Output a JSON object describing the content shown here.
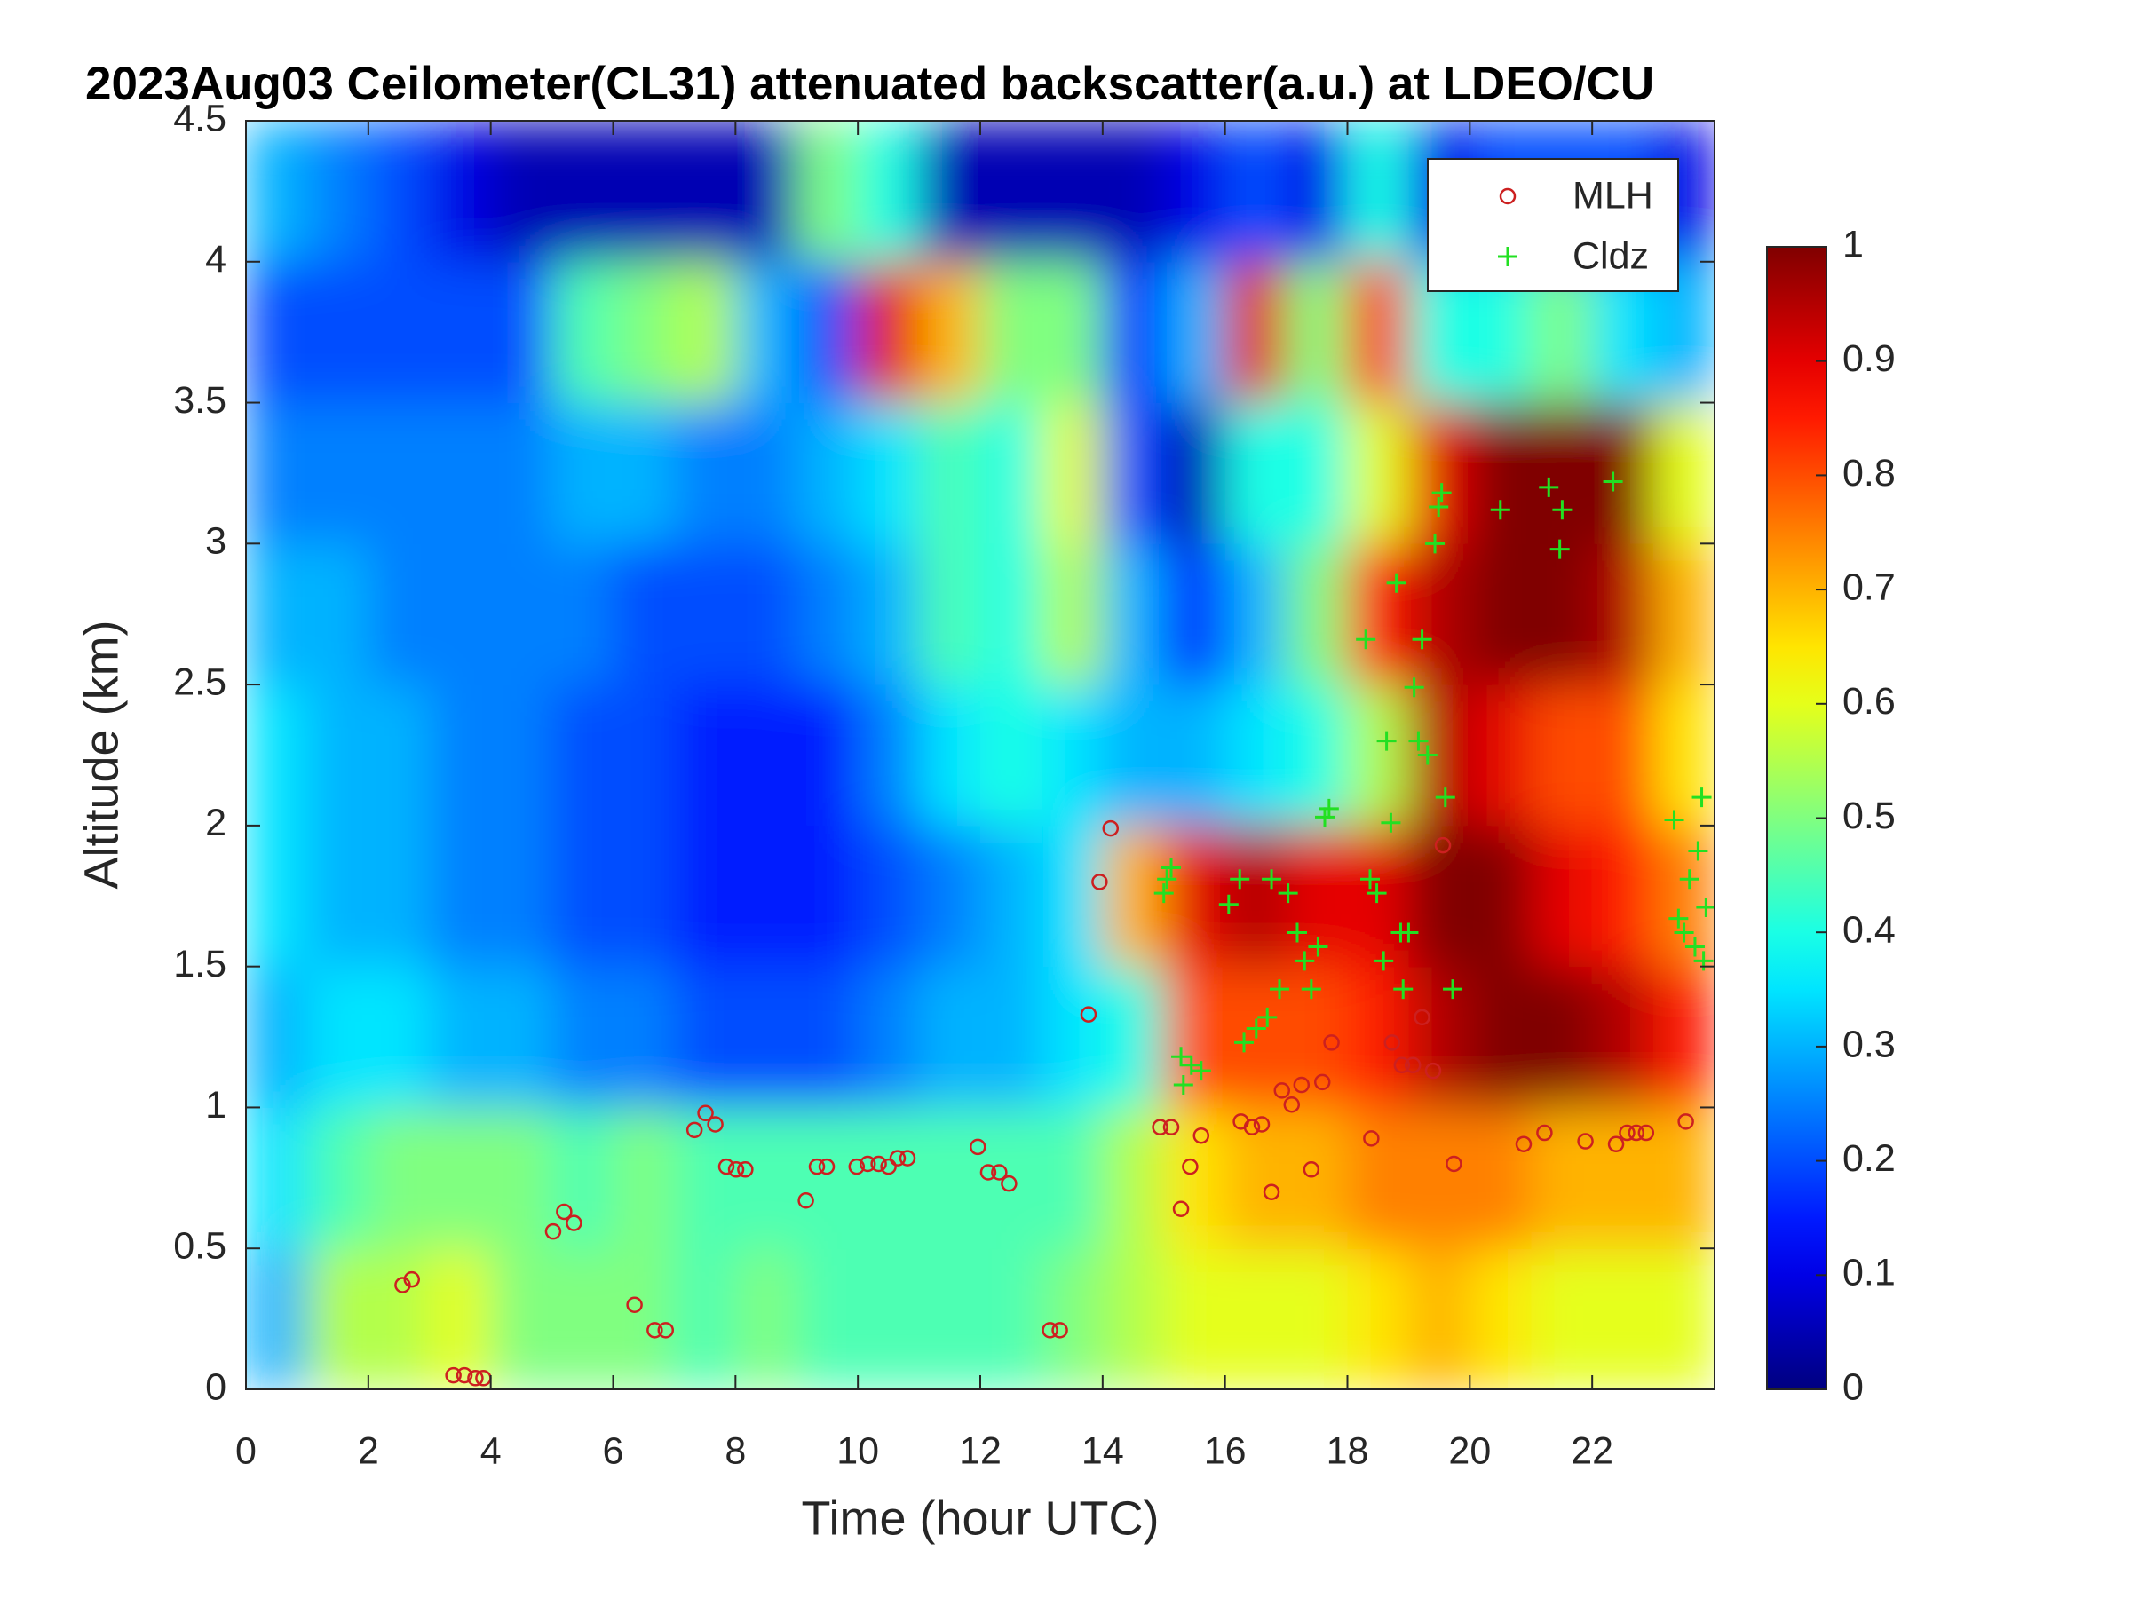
{
  "chart_data": {
    "type": "heatmap",
    "title": "2023Aug03 Ceilometer(CL31) attenuated backscatter(a.u.) at LDEO/CU",
    "x_label": "Time (hour UTC)",
    "y_label": "Altitude (km)",
    "xlim": [
      0,
      24
    ],
    "xticks": [
      0,
      2,
      4,
      6,
      8,
      10,
      12,
      14,
      16,
      18,
      20,
      22
    ],
    "ylim": [
      0,
      4.5
    ],
    "yticks": [
      0,
      0.5,
      1,
      1.5,
      2,
      2.5,
      3,
      3.5,
      4,
      4.5
    ],
    "colormap": "jet",
    "colorbar": {
      "lim": [
        0,
        1
      ],
      "ticks": [
        0,
        0.1,
        0.2,
        0.3,
        0.4,
        0.5,
        0.6,
        0.7,
        0.8,
        0.9,
        1
      ]
    },
    "heatmap_x": [
      0,
      1,
      2,
      3,
      4,
      5,
      6,
      7,
      8,
      9,
      10,
      11,
      12,
      13,
      14,
      15,
      16,
      17,
      18,
      19,
      20,
      21,
      22,
      23,
      24
    ],
    "heatmap_y": [
      0,
      0.5,
      1,
      1.5,
      2,
      2.5,
      3,
      3.5,
      4,
      4.5
    ],
    "heatmap_values": [
      [
        0.3,
        0.55,
        0.55,
        0.6,
        0.5,
        0.5,
        0.5,
        0.45,
        0.5,
        0.45,
        0.45,
        0.45,
        0.45,
        0.5,
        0.55,
        0.6,
        0.6,
        0.6,
        0.65,
        0.7,
        0.65,
        0.6,
        0.6,
        0.6
      ],
      [
        0.35,
        0.45,
        0.5,
        0.5,
        0.5,
        0.45,
        0.5,
        0.45,
        0.45,
        0.45,
        0.45,
        0.45,
        0.45,
        0.45,
        0.55,
        0.65,
        0.7,
        0.7,
        0.75,
        0.75,
        0.75,
        0.7,
        0.7,
        0.7
      ],
      [
        0.3,
        0.35,
        0.35,
        0.3,
        0.3,
        0.25,
        0.25,
        0.2,
        0.2,
        0.2,
        0.25,
        0.3,
        0.3,
        0.35,
        0.4,
        0.8,
        0.8,
        0.8,
        0.85,
        0.95,
        1,
        1,
        0.95,
        0.85
      ],
      [
        0.35,
        0.3,
        0.3,
        0.25,
        0.25,
        0.2,
        0.2,
        0.15,
        0.15,
        0.15,
        0.2,
        0.25,
        0.3,
        0.35,
        0.7,
        0.9,
        0.95,
        0.9,
        0.9,
        1,
        1,
        0.9,
        0.85,
        0.75
      ],
      [
        0.35,
        0.3,
        0.3,
        0.25,
        0.25,
        0.2,
        0.2,
        0.15,
        0.15,
        0.15,
        0.25,
        0.35,
        0.4,
        0.35,
        0.3,
        0.3,
        0.35,
        0.4,
        0.55,
        0.95,
        0.9,
        0.8,
        0.8,
        0.65
      ],
      [
        0.3,
        0.3,
        0.25,
        0.25,
        0.25,
        0.25,
        0.2,
        0.2,
        0.2,
        0.25,
        0.3,
        0.45,
        0.4,
        0.55,
        0.3,
        0.15,
        0.3,
        0.5,
        0.85,
        0.95,
        1,
        1,
        0.95,
        0.7
      ],
      [
        0.25,
        0.25,
        0.25,
        0.25,
        0.25,
        0.3,
        0.3,
        0.25,
        0.25,
        0.3,
        0.35,
        0.45,
        0.4,
        0.6,
        0.2,
        0.05,
        0.4,
        0.4,
        0.6,
        0.9,
        1,
        1,
        1,
        0.6
      ],
      [
        0.2,
        0.2,
        0.2,
        0.2,
        0.2,
        0.45,
        0.5,
        0.55,
        0.3,
        0.2,
        0.9,
        0.7,
        0.5,
        0.5,
        0.15,
        0.3,
        0.9,
        0.5,
        0.85,
        0.4,
        0.4,
        0.5,
        0.35,
        0.3
      ],
      [
        0.3,
        0.25,
        0.2,
        0.1,
        0.05,
        0.05,
        0.05,
        0.05,
        0.05,
        0.5,
        0.4,
        0.05,
        0.05,
        0.05,
        0.05,
        0.1,
        0.2,
        0.1,
        0.4,
        0.1,
        0.2,
        0.2,
        0.2,
        0.1
      ]
    ],
    "legend": "upper right",
    "series": [
      {
        "name": "MLH",
        "color": "#cc2020",
        "marker": "o",
        "x": [
          2.56,
          2.71,
          3.39,
          3.57,
          3.75,
          3.88,
          5.02,
          5.2,
          5.36,
          6.35,
          6.68,
          6.86,
          7.33,
          7.51,
          7.67,
          7.85,
          8.01,
          8.16,
          9.15,
          9.33,
          9.49,
          9.98,
          10.16,
          10.34,
          10.5,
          10.65,
          10.81,
          11.96,
          12.13,
          12.31,
          12.47,
          13.14,
          13.3,
          13.77,
          13.95,
          14.13,
          14.94,
          15.12,
          15.28,
          15.43,
          15.61,
          16.26,
          16.44,
          16.6,
          16.76,
          16.93,
          17.09,
          17.25,
          17.41,
          17.59,
          17.74,
          18.39,
          18.73,
          18.89,
          19.07,
          19.22,
          19.4,
          19.56,
          19.74,
          20.88,
          21.22,
          21.89,
          22.39,
          22.57,
          22.72,
          22.88,
          23.53
        ],
        "values": [
          0.37,
          0.39,
          0.05,
          0.05,
          0.04,
          0.04,
          0.56,
          0.63,
          0.59,
          0.3,
          0.21,
          0.21,
          0.92,
          0.98,
          0.94,
          0.79,
          0.78,
          0.78,
          0.67,
          0.79,
          0.79,
          0.79,
          0.8,
          0.8,
          0.79,
          0.82,
          0.82,
          0.86,
          0.77,
          0.77,
          0.73,
          0.21,
          0.21,
          1.33,
          1.8,
          1.99,
          0.93,
          0.93,
          0.64,
          0.79,
          0.9,
          0.95,
          0.93,
          0.94,
          0.7,
          1.06,
          1.01,
          1.08,
          0.78,
          1.09,
          1.23,
          0.89,
          1.23,
          1.15,
          1.15,
          1.32,
          1.13,
          1.93,
          0.8,
          0.87,
          0.91,
          0.88,
          0.87,
          0.91,
          0.91,
          0.91,
          0.95
        ]
      },
      {
        "name": "Cldz",
        "color": "#22e022",
        "marker": "+",
        "x": [
          15.05,
          15.12,
          15.0,
          15.28,
          15.32,
          15.45,
          15.61,
          16.06,
          16.24,
          16.31,
          16.51,
          16.69,
          16.76,
          16.89,
          17.03,
          17.18,
          17.3,
          17.41,
          17.52,
          17.63,
          17.7,
          18.3,
          18.37,
          18.48,
          18.59,
          18.64,
          18.71,
          18.8,
          18.87,
          18.91,
          19.0,
          19.09,
          19.16,
          19.22,
          19.31,
          19.43,
          19.49,
          19.54,
          19.6,
          19.72,
          20.5,
          21.29,
          21.47,
          21.51,
          22.34,
          23.34,
          23.41,
          23.5,
          23.59,
          23.68,
          23.73,
          23.79,
          23.82,
          23.86
        ],
        "values": [
          1.81,
          1.85,
          1.76,
          1.18,
          1.08,
          1.15,
          1.13,
          1.72,
          1.81,
          1.23,
          1.28,
          1.32,
          1.81,
          1.42,
          1.76,
          1.62,
          1.52,
          1.42,
          1.57,
          2.03,
          2.06,
          2.66,
          1.81,
          1.76,
          1.52,
          2.3,
          2.01,
          2.86,
          1.62,
          1.42,
          1.62,
          2.49,
          2.3,
          2.66,
          2.25,
          3.0,
          3.13,
          3.18,
          2.1,
          1.42,
          3.12,
          3.2,
          2.98,
          3.12,
          3.22,
          2.02,
          1.67,
          1.62,
          1.81,
          1.57,
          1.91,
          2.1,
          1.52,
          1.71
        ]
      }
    ]
  }
}
